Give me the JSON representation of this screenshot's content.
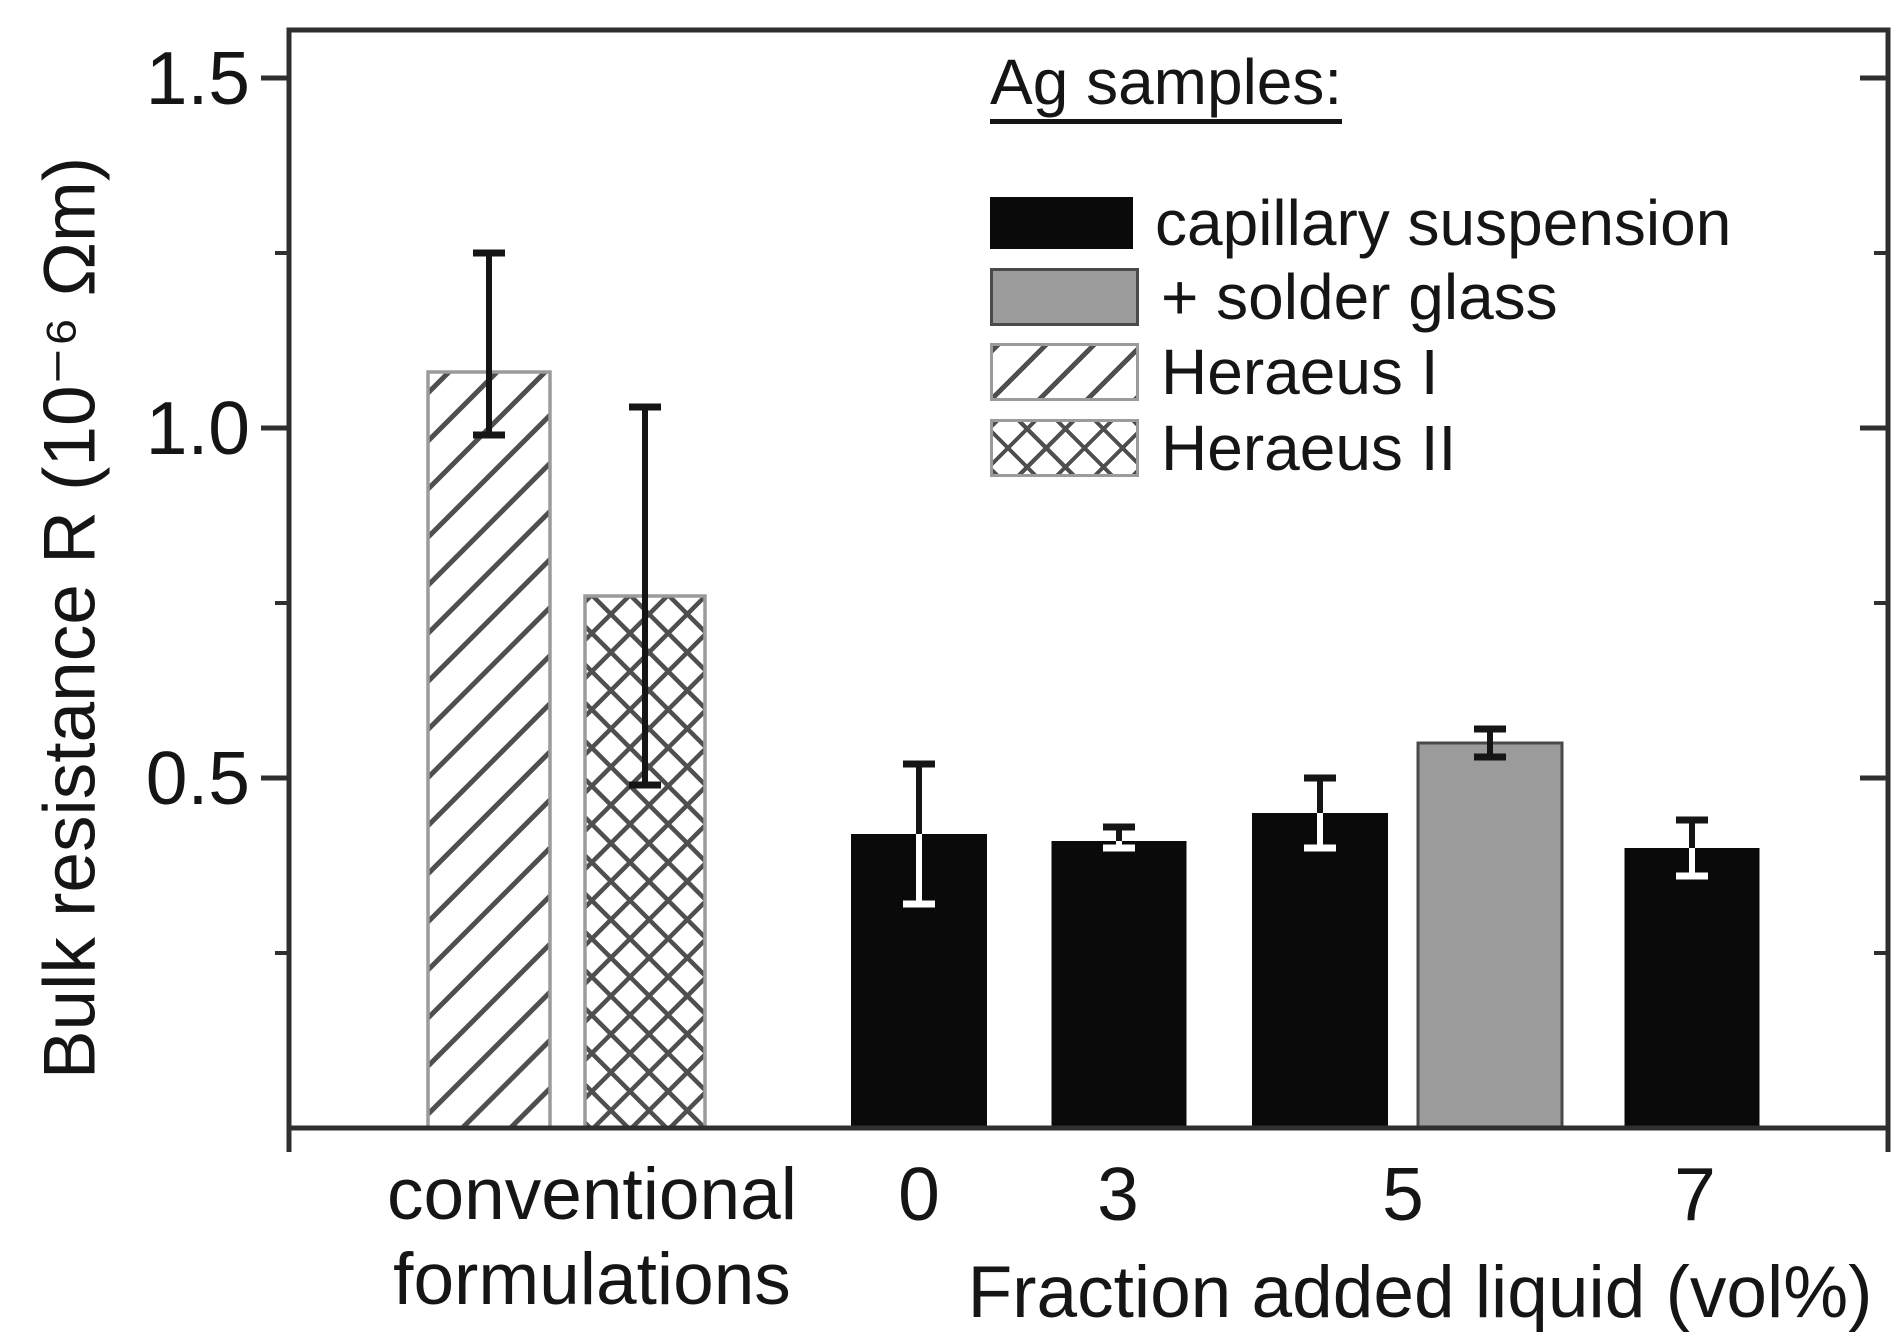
{
  "chart_data": {
    "type": "bar",
    "title": "",
    "ylabel": "Bulk resistance R (10⁻⁶ Ωm)",
    "xlabel": "Fraction added liquid (vol%)",
    "ylim": [
      0,
      1.57
    ],
    "grid": false,
    "legend_position": "upper right",
    "y_major_ticks": [
      {
        "value": 0.5,
        "label": "0.5"
      },
      {
        "value": 1.0,
        "label": "1.0"
      },
      {
        "value": 1.5,
        "label": "1.5"
      }
    ],
    "y_minor_ticks": [
      0.25,
      0.75,
      1.25
    ],
    "x_tick_labels": [
      "0",
      "3",
      "5",
      "7"
    ],
    "group_label_line1": "conventional",
    "group_label_line2": "formulations",
    "legend_title": "Ag samples:",
    "legend_items": [
      {
        "label": "capillary suspension",
        "style": "solid-black"
      },
      {
        "label": "+ solder glass",
        "style": "solid-gray"
      },
      {
        "label": "Heraeus I",
        "style": "diagonal-hatch"
      },
      {
        "label": "Heraeus II",
        "style": "cross-hatch"
      }
    ],
    "bars": [
      {
        "series": "Heraeus I",
        "group": "conventional formulations",
        "value": 1.08,
        "err_low": 0.99,
        "err_high": 1.25,
        "style": "diagonal-hatch"
      },
      {
        "series": "Heraeus II",
        "group": "conventional formulations",
        "value": 0.76,
        "err_low": 0.49,
        "err_high": 1.03,
        "style": "cross-hatch"
      },
      {
        "series": "capillary suspension",
        "group": "0",
        "value": 0.42,
        "err_low": 0.32,
        "err_high": 0.52,
        "style": "solid-black"
      },
      {
        "series": "capillary suspension",
        "group": "3",
        "value": 0.41,
        "err_low": 0.4,
        "err_high": 0.43,
        "style": "solid-black"
      },
      {
        "series": "capillary suspension",
        "group": "5",
        "value": 0.45,
        "err_low": 0.4,
        "err_high": 0.5,
        "style": "solid-black"
      },
      {
        "series": "+ solder glass",
        "group": "5",
        "value": 0.55,
        "err_low": 0.53,
        "err_high": 0.57,
        "style": "solid-gray"
      },
      {
        "series": "capillary suspension",
        "group": "7",
        "value": 0.4,
        "err_low": 0.36,
        "err_high": 0.44,
        "style": "solid-black"
      }
    ],
    "colors": {
      "bar_black": "#0a0a0a",
      "bar_gray": "#9b9b9b",
      "hatch_line": "#4f4f4f",
      "hatch_border": "#9b9b9b",
      "gray_border": "#4a4a4a",
      "axis": "#2f2f2f",
      "text": "#151515",
      "error_dark": "#151515",
      "error_on_black": "#ffffff"
    }
  }
}
